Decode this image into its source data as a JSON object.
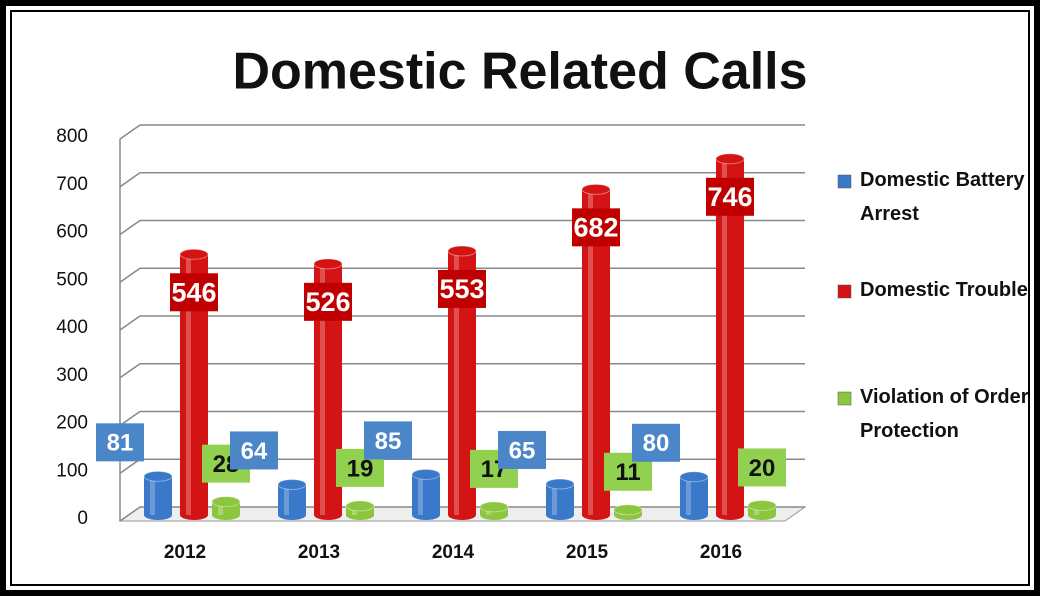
{
  "chart_data": {
    "type": "bar",
    "title": "Domestic Related Calls",
    "categories": [
      "2012",
      "2013",
      "2014",
      "2015",
      "2016"
    ],
    "series": [
      {
        "name": "Domestic Battery Arrest",
        "color": "#3a78c9",
        "values": [
          81,
          64,
          85,
          65,
          80
        ]
      },
      {
        "name": "Domestic Trouble",
        "color": "#d41414",
        "values": [
          546,
          526,
          553,
          682,
          746
        ]
      },
      {
        "name": "Violation of Order Protection",
        "color": "#8cc63f",
        "values": [
          28,
          19,
          17,
          11,
          20
        ]
      }
    ],
    "ylim": [
      0,
      800
    ],
    "yticks": [
      0,
      100,
      200,
      300,
      400,
      500,
      600,
      700,
      800
    ],
    "grid": true,
    "legend": "right"
  }
}
